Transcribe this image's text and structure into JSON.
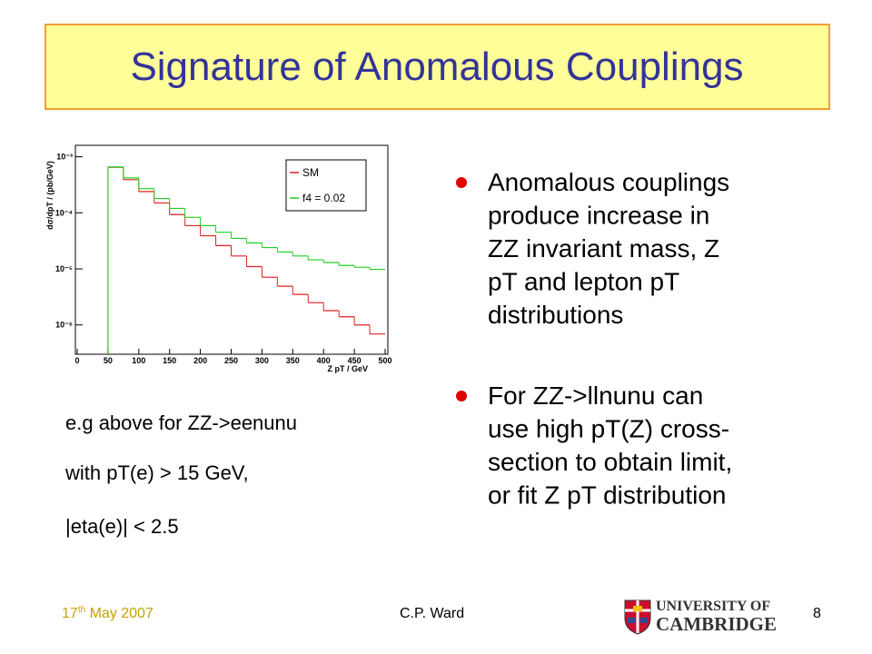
{
  "title": "Signature of Anomalous Couplings",
  "chart_data": {
    "type": "histogram",
    "ylabel": "dσ/dpT / (pb/GeV)",
    "xlabel": "Z pT / GeV",
    "bins": [
      50,
      75,
      100,
      125,
      150,
      175,
      200,
      225,
      250,
      275,
      300,
      325,
      350,
      375,
      400,
      425,
      450,
      475,
      500
    ],
    "series": [
      {
        "name": "SM",
        "color": "#e02020",
        "values": [
          0.00065,
          0.00039,
          0.00024,
          0.00015,
          9.3e-05,
          5.9e-05,
          3.9e-05,
          2.6e-05,
          1.7e-05,
          1.1e-05,
          7.1e-06,
          4.9e-06,
          3.5e-06,
          2.5e-06,
          1.8e-06,
          1.4e-06,
          1e-06,
          6.9e-07
        ]
      },
      {
        "name": "f4 = 0.02",
        "color": "#20d020",
        "values": [
          0.00066,
          0.00042,
          0.00027,
          0.00018,
          0.00012,
          8.3e-05,
          5.9e-05,
          4.5e-05,
          3.5e-05,
          2.9e-05,
          2.4e-05,
          2e-05,
          1.7e-05,
          1.45e-05,
          1.3e-05,
          1.15e-05,
          1.07e-05,
          9.8e-06
        ]
      }
    ],
    "xlim": [
      0,
      500
    ],
    "xticks": [
      0,
      50,
      100,
      150,
      200,
      250,
      300,
      350,
      400,
      450,
      500
    ],
    "ylim": [
      3e-07,
      0.0016
    ],
    "ylog": true,
    "yticks": [
      {
        "value": 0.001,
        "label": "10⁻³"
      },
      {
        "value": 0.0001,
        "label": "10⁻⁴"
      },
      {
        "value": 1e-05,
        "label": "10⁻⁵"
      },
      {
        "value": 1e-06,
        "label": "10⁻⁶"
      }
    ],
    "legend": "upper right"
  },
  "bullets": [
    {
      "lines": [
        "Anomalous couplings",
        "produce increase in",
        "ZZ invariant mass, Z",
        "pT and lepton pT",
        "distributions"
      ]
    },
    {
      "lines": [
        "For ZZ->llnunu can",
        "use high pT(Z) cross-",
        "section to obtain limit,",
        "or fit Z pT distribution"
      ]
    }
  ],
  "caption": [
    "e.g above for ZZ->eenunu",
    "with pT(e) > 15 GeV,",
    "|eta(e)| < 2.5"
  ],
  "footer": {
    "date": {
      "day": "17",
      "suffix": "th",
      "rest": " May 2007"
    },
    "author": "C.P. Ward",
    "page": "8",
    "logo": {
      "line1": "UNIVERSITY OF",
      "line2": "CAMBRIDGE"
    }
  }
}
